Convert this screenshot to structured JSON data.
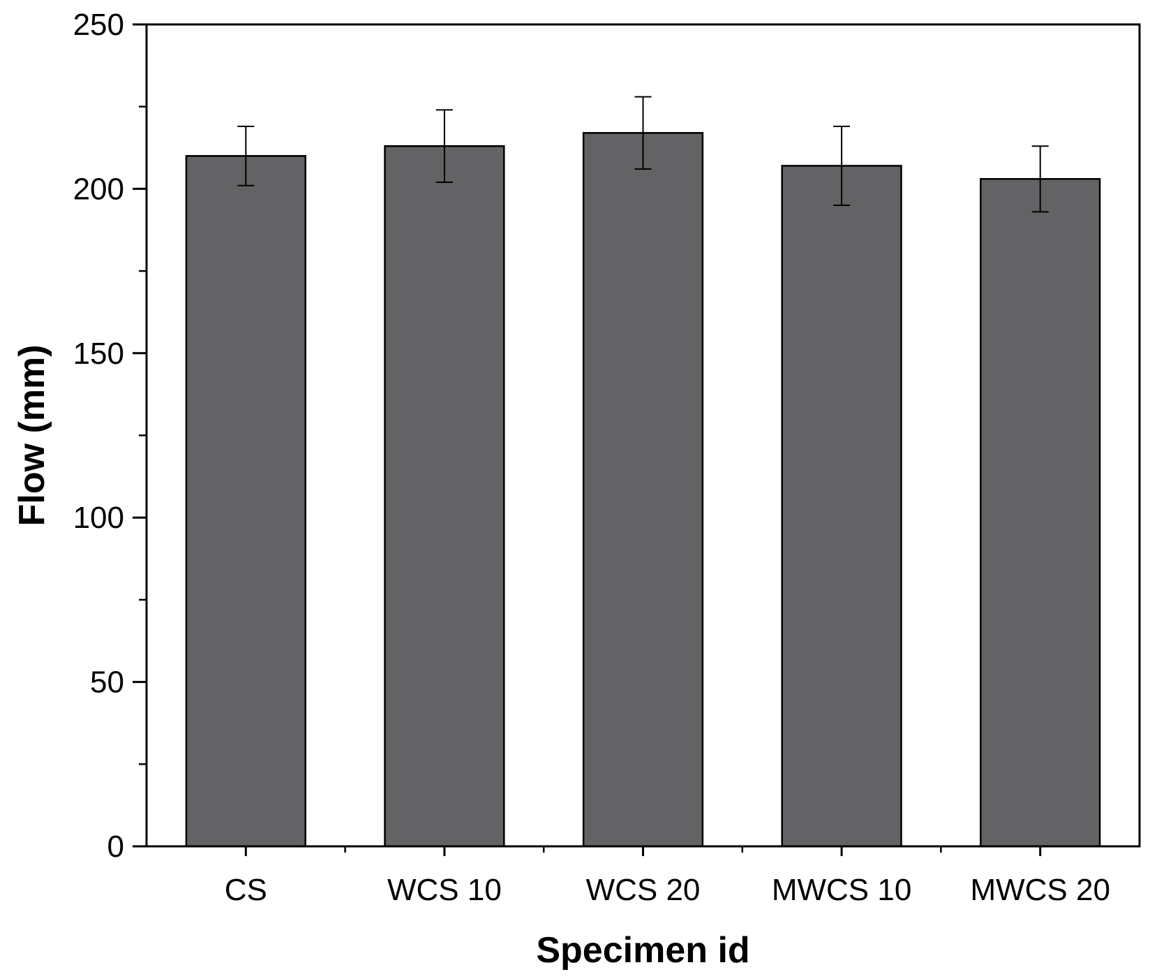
{
  "chart_data": {
    "type": "bar",
    "categories": [
      "CS",
      "WCS 10",
      "WCS 20",
      "MWCS 10",
      "MWCS 20"
    ],
    "values": [
      210,
      213,
      217,
      207,
      203
    ],
    "error_low": [
      201,
      202,
      206,
      195,
      193
    ],
    "error_high": [
      219,
      224,
      228,
      219,
      213
    ],
    "xlabel": "Specimen id",
    "ylabel": "Flow (mm)",
    "ylim": [
      0,
      250
    ],
    "yticks": [
      "0",
      "50",
      "100",
      "150",
      "200",
      "250"
    ],
    "grid": false,
    "bar_color": "#636365",
    "bar_edge_color": "#000000"
  }
}
